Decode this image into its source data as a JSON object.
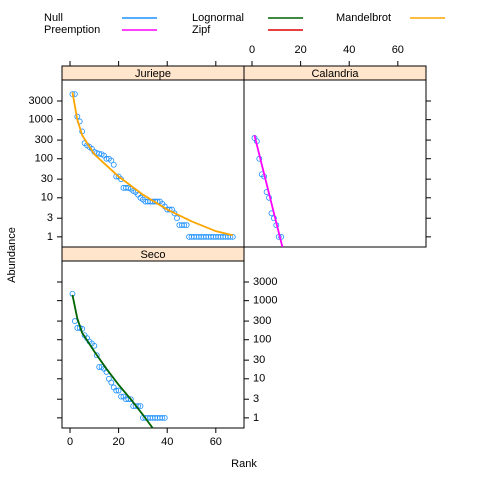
{
  "chart_data": {
    "type": "scatter",
    "xlabel": "Rank",
    "ylabel": "Abundance",
    "yscale": "log",
    "xlim": [
      -3.3,
      71.6
    ],
    "ylim": [
      0.55,
      10350
    ],
    "xticks": [
      0,
      20,
      40,
      60
    ],
    "yticks": [
      1,
      3,
      10,
      30,
      100,
      300,
      1000,
      3000
    ],
    "point_color": "#1e90ff",
    "legend": [
      {
        "name": "Null",
        "color": "#1e90ff"
      },
      {
        "name": "Lognormal",
        "color": "#006400"
      },
      {
        "name": "Mandelbrot",
        "color": "#ffa500"
      },
      {
        "name": "Preemption",
        "color": "#ff00ff"
      },
      {
        "name": "Zipf",
        "color": "#e00000"
      }
    ],
    "panels": [
      {
        "title": "Juriepe",
        "x": [
          1,
          2,
          3,
          4,
          5,
          6,
          7,
          8,
          9,
          10,
          11,
          12,
          13,
          14,
          15,
          16,
          17,
          18,
          19,
          20,
          21,
          22,
          23,
          24,
          25,
          26,
          27,
          28,
          29,
          30,
          31,
          32,
          33,
          34,
          35,
          36,
          37,
          38,
          39,
          40,
          41,
          42,
          43,
          44,
          45,
          46,
          47,
          48,
          49,
          50,
          51,
          52,
          53,
          54,
          55,
          56,
          57,
          58,
          59,
          60,
          61,
          62,
          63,
          64,
          65,
          66,
          67
        ],
        "values": [
          4500,
          4500,
          1200,
          900,
          500,
          250,
          220,
          200,
          180,
          150,
          140,
          135,
          130,
          120,
          100,
          100,
          90,
          70,
          35,
          35,
          30,
          18,
          18,
          18,
          17,
          15,
          14,
          12,
          10,
          9,
          8,
          8,
          8,
          8,
          8,
          8,
          8,
          7,
          6,
          5,
          5,
          5,
          4,
          3,
          2,
          2,
          2,
          2,
          1,
          1,
          1,
          1,
          1,
          1,
          1,
          1,
          1,
          1,
          1,
          1,
          1,
          1,
          1,
          1,
          1,
          1,
          1
        ],
        "fit_model": "Mandelbrot",
        "fit_x": [
          1,
          3,
          5,
          10,
          20,
          30,
          40,
          50,
          60,
          67
        ],
        "fit_values": [
          5000,
          1000,
          400,
          130,
          35,
          12,
          5,
          2.5,
          1.4,
          1.1
        ]
      },
      {
        "title": "Calandria",
        "x": [
          1,
          2,
          3,
          4,
          5,
          6,
          7,
          8,
          9,
          10,
          11,
          12
        ],
        "values": [
          340,
          280,
          100,
          40,
          35,
          14,
          10,
          4,
          3,
          2,
          1,
          1
        ],
        "fit_model": "Preemption",
        "fit_x": [
          1,
          12.5
        ],
        "fit_values": [
          400,
          0.55
        ]
      },
      {
        "title": "Seco",
        "x": [
          1,
          2,
          3,
          4,
          5,
          6,
          7,
          8,
          9,
          10,
          11,
          12,
          13,
          14,
          15,
          16,
          17,
          18,
          19,
          20,
          21,
          22,
          23,
          24,
          25,
          26,
          27,
          28,
          29,
          30,
          31,
          32,
          33,
          34,
          35,
          36,
          37,
          38,
          39
        ],
        "values": [
          1500,
          300,
          200,
          200,
          190,
          130,
          110,
          90,
          80,
          70,
          40,
          20,
          20,
          18,
          15,
          10,
          8,
          6,
          5,
          5,
          3.5,
          3.5,
          3,
          3,
          3,
          2,
          2,
          2,
          2,
          1,
          1,
          1,
          1,
          1,
          1,
          1,
          1,
          1,
          1
        ],
        "fit_model": "Lognormal",
        "fit_x": [
          1,
          3,
          5,
          10,
          15,
          20,
          25,
          30,
          34
        ],
        "fit_values": [
          1400,
          350,
          150,
          50,
          18,
          7,
          3,
          1.2,
          0.55
        ]
      }
    ]
  }
}
